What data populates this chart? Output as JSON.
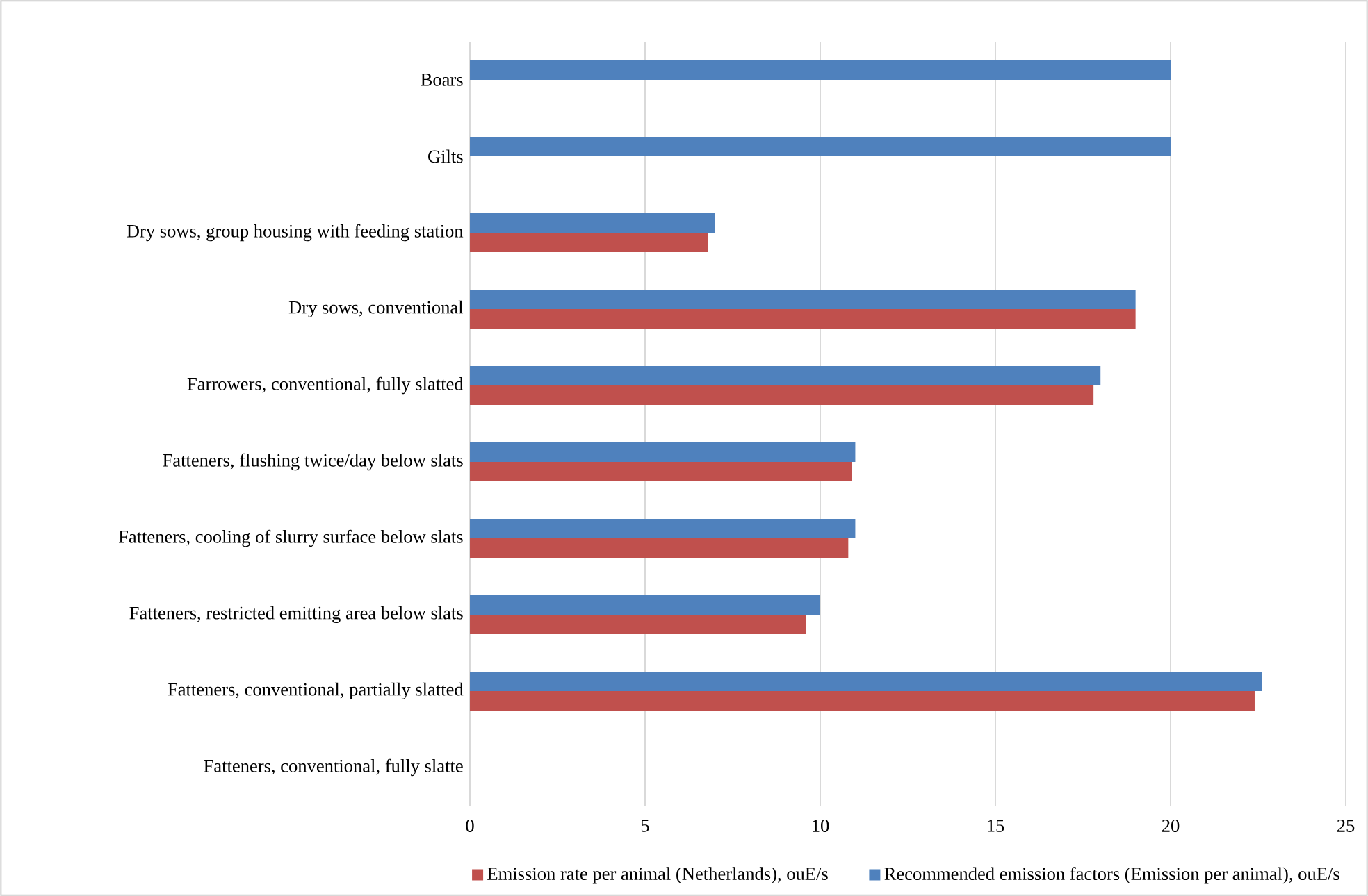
{
  "chart_data": {
    "type": "bar",
    "orientation": "horizontal",
    "categories": [
      "Boars",
      "Gilts",
      "Dry sows, group housing with feeding station",
      "Dry sows, conventional",
      "Farrowers, conventional, fully slatted",
      "Fatteners, flushing twice/day below slats",
      "Fatteners, cooling of slurry surface below slats",
      "Fatteners, restricted emitting area below slats",
      "Fatteners, conventional, partially slatted",
      "Fatteners, conventional, fully slatte"
    ],
    "series": [
      {
        "name": "Emission rate per animal (Netherlands), ouE/s",
        "color": "#c0504d",
        "values": [
          null,
          null,
          6.8,
          19.0,
          17.8,
          10.9,
          10.8,
          9.6,
          22.4,
          null
        ]
      },
      {
        "name": "Recommended emission factors (Emission per animal), ouE/s",
        "color": "#4f81bd",
        "values": [
          20,
          20,
          7.0,
          19.0,
          18.0,
          11.0,
          11.0,
          10.0,
          22.6,
          null
        ]
      }
    ],
    "xlim": [
      0,
      25
    ],
    "xticks": [
      0,
      5,
      10,
      15,
      20,
      25
    ],
    "grid": "x",
    "legend": "bottom"
  }
}
